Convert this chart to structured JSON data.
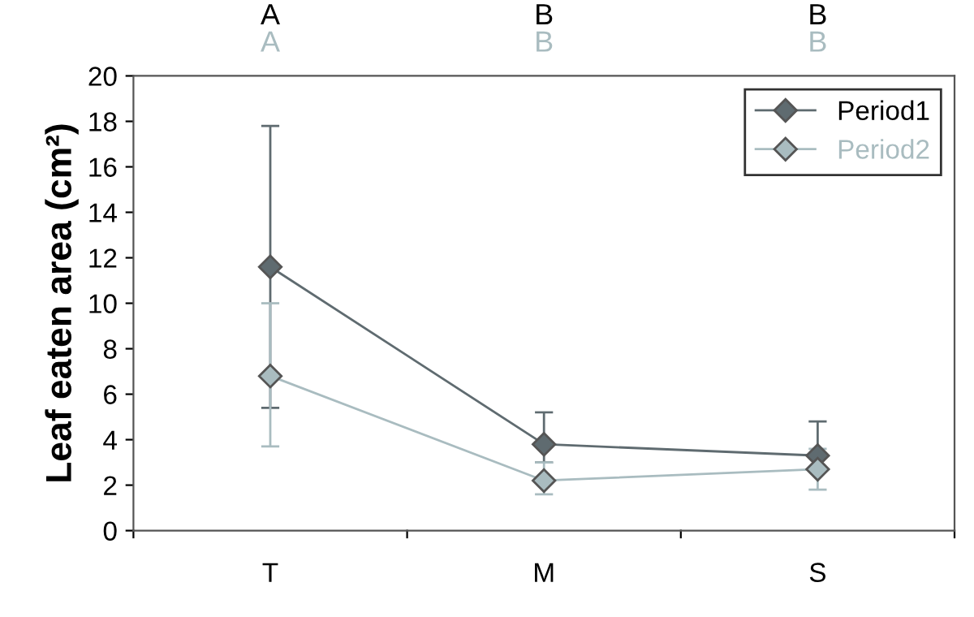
{
  "chart_data": {
    "type": "line",
    "ylabel": "Leaf eaten area (cm²)",
    "categories": [
      "T",
      "M",
      "S"
    ],
    "series": [
      {
        "name": "Period1",
        "color": "#5f6b70",
        "values": [
          11.6,
          3.8,
          3.3
        ],
        "errors": [
          [
            5.4,
            17.8
          ],
          [
            3.0,
            5.2
          ],
          [
            2.7,
            4.8
          ]
        ]
      },
      {
        "name": "Period2",
        "color": "#a9bcc0",
        "values": [
          6.8,
          2.2,
          2.7
        ],
        "errors": [
          [
            3.7,
            10.0
          ],
          [
            1.6,
            3.0
          ],
          [
            1.8,
            3.6
          ]
        ]
      }
    ],
    "ylim": [
      0,
      20
    ],
    "yticks": [
      0,
      2,
      4,
      6,
      8,
      10,
      12,
      14,
      16,
      18,
      20
    ],
    "marker": "diamond",
    "line_style": "solid",
    "grid": false,
    "legend": "top right",
    "annotations": [
      "A",
      "B",
      "B",
      "A",
      "B",
      "B"
    ]
  }
}
